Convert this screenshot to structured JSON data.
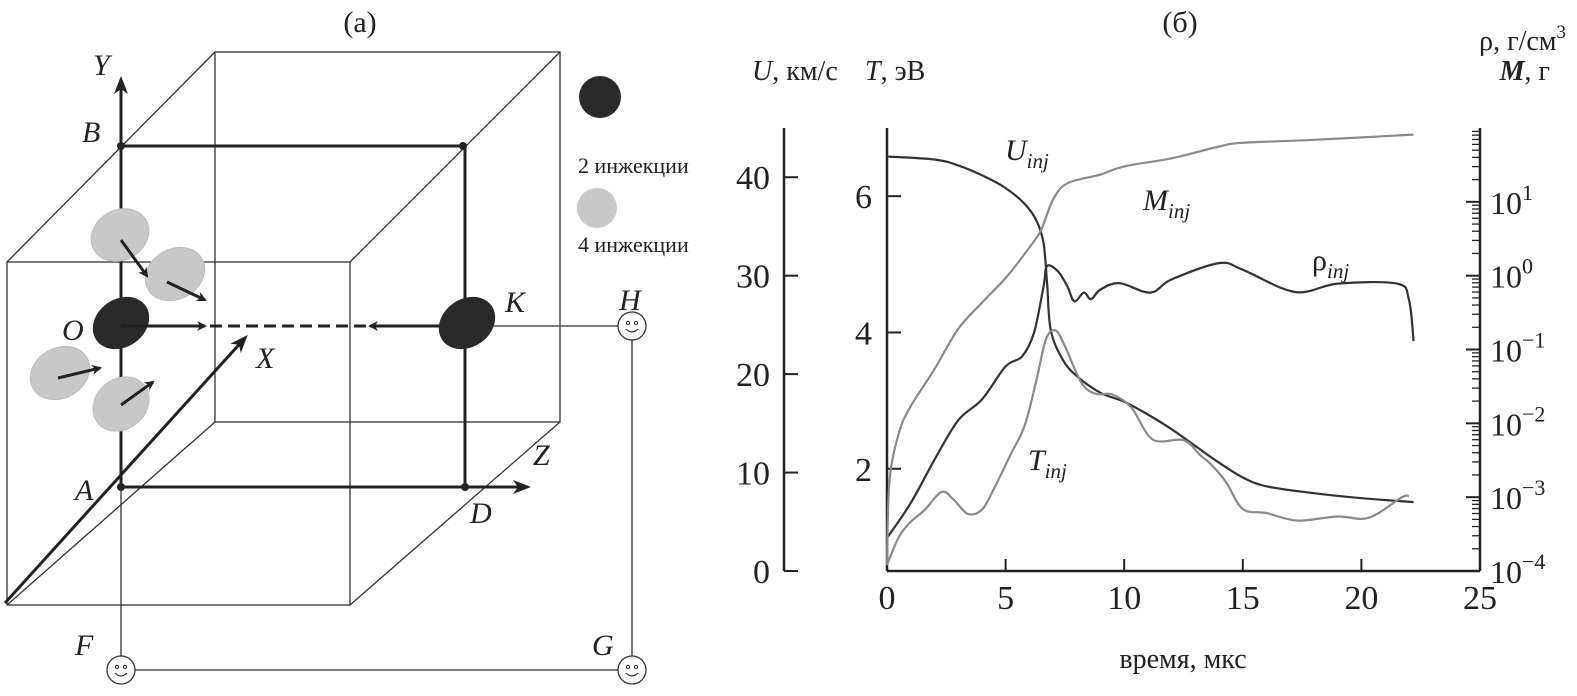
{
  "panel_a": {
    "label": "(а)",
    "points": {
      "Y": "Y",
      "B": "B",
      "O": "O",
      "X": "X",
      "A": "A",
      "Z": "Z",
      "D": "D",
      "K": "K",
      "H": "H",
      "F": "F",
      "G": "G"
    },
    "legend": [
      {
        "label": "2 инжекции",
        "color": "#2a2a2a"
      },
      {
        "label": "4 инжекции",
        "color": "#c8c8c8"
      }
    ]
  },
  "chart_data": {
    "type": "line",
    "panel_label": "(б)",
    "xlabel": "время, мкс",
    "xlim": [
      0,
      25
    ],
    "xticks": [
      0,
      5,
      10,
      15,
      20,
      25
    ],
    "axes": {
      "U": {
        "label_var": "U",
        "label_unit": ", км/с",
        "lim": [
          0,
          45
        ],
        "ticks": [
          0,
          10,
          20,
          30,
          40
        ]
      },
      "T": {
        "label_var": "T",
        "label_unit": ", эВ",
        "lim": [
          0.5,
          7
        ],
        "ticks": [
          2,
          4,
          6
        ]
      },
      "right": {
        "label1": "ρ, г/см",
        "label1_sup": "3",
        "label2_var": "M",
        "label2_unit": ", г",
        "scale": "log",
        "lim": [
          0.0001,
          100
        ],
        "ticks": [
          {
            "base": "10",
            "exp": "−4",
            "v": -4
          },
          {
            "base": "10",
            "exp": "−3",
            "v": -3
          },
          {
            "base": "10",
            "exp": "−2",
            "v": -2
          },
          {
            "base": "10",
            "exp": "−1",
            "v": -1
          },
          {
            "base": "10",
            "exp": "0",
            "v": 0
          },
          {
            "base": "10",
            "exp": "1",
            "v": 1
          }
        ]
      }
    },
    "series": [
      {
        "name": "U",
        "sub": "inj",
        "axis": "U",
        "color": "#333333",
        "x": [
          0,
          2,
          3,
          4,
          5,
          5.8,
          6.3,
          6.6,
          6.75,
          6.9,
          7.4,
          8,
          9,
          10,
          11,
          12,
          13,
          14,
          15,
          16,
          18,
          20,
          22.2
        ],
        "y": [
          42.1,
          41.8,
          41.2,
          40.2,
          38.9,
          37.3,
          35.6,
          33.3,
          29.2,
          24.5,
          21.5,
          19.8,
          18.1,
          17.2,
          15.9,
          14.4,
          12.7,
          11.0,
          9.5,
          8.6,
          7.9,
          7.4,
          7.0
        ]
      },
      {
        "name": "T",
        "sub": "inj",
        "axis": "T",
        "color": "#8a8a8a",
        "x": [
          0,
          0.5,
          1,
          1.6,
          2.3,
          2.8,
          3.4,
          4,
          4.5,
          5.2,
          5.8,
          6.3,
          6.7,
          7.1,
          7.5,
          8.2,
          8.8,
          9.5,
          10.3,
          11.2,
          12.5,
          13.2,
          13.7,
          14.3,
          15,
          16,
          17.3,
          19,
          20.3,
          21.7,
          22
        ],
        "y": [
          0.59,
          1.0,
          1.22,
          1.4,
          1.66,
          1.55,
          1.34,
          1.4,
          1.7,
          2.2,
          2.63,
          3.3,
          3.9,
          4.03,
          3.8,
          3.26,
          3.1,
          3.09,
          2.9,
          2.43,
          2.42,
          2.2,
          2.05,
          1.8,
          1.41,
          1.35,
          1.24,
          1.3,
          1.28,
          1.58,
          1.6
        ]
      },
      {
        "name": "ρ",
        "sub": "inj",
        "axis": "right",
        "color": "#333333",
        "x": [
          0,
          1,
          2,
          3,
          4,
          5,
          5.7,
          6.2,
          6.6,
          6.75,
          7.2,
          7.6,
          7.9,
          8.3,
          8.6,
          9,
          9.8,
          11.1,
          12,
          14,
          15,
          17.2,
          19,
          21.5,
          22,
          22.2
        ],
        "y": [
          0.00028,
          0.00083,
          0.0032,
          0.011,
          0.021,
          0.059,
          0.081,
          0.17,
          0.72,
          1.35,
          1.15,
          0.72,
          0.45,
          0.59,
          0.48,
          0.65,
          0.79,
          0.59,
          0.89,
          1.48,
          1.2,
          0.6,
          0.78,
          0.78,
          0.48,
          0.13
        ]
      },
      {
        "name": "M",
        "sub": "inj",
        "axis": "right",
        "color": "#8a8a8a",
        "x": [
          0,
          0.1,
          0.5,
          1,
          2,
          3,
          4,
          5,
          6,
          6.5,
          7,
          7.6,
          9,
          10,
          12,
          14,
          15,
          18,
          22.2
        ],
        "y": [
          0.00012,
          0.0016,
          0.0074,
          0.017,
          0.054,
          0.19,
          0.43,
          0.93,
          2.4,
          4.2,
          10.7,
          17.8,
          23.4,
          30.2,
          38.9,
          56.2,
          63.1,
          69.2,
          81.3
        ]
      }
    ]
  }
}
